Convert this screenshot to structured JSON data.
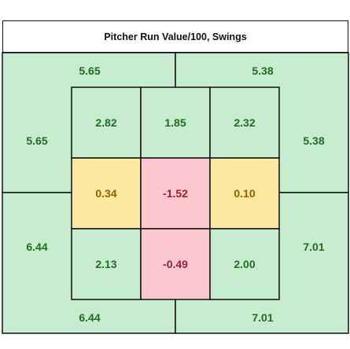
{
  "chart_data": {
    "type": "heatmap",
    "title": "Pitcher Run Value/100, Swings",
    "zone_grid": [
      [
        2.82,
        1.85,
        2.32
      ],
      [
        0.34,
        -1.52,
        0.1
      ],
      [
        2.13,
        -0.49,
        2.0
      ]
    ],
    "outer_labels": {
      "top_left": 5.65,
      "top_right": 5.38,
      "left_upper": 5.65,
      "right_upper": 5.38,
      "left_lower": 6.44,
      "right_lower": 7.01,
      "bottom_left": 6.44,
      "bottom_right": 7.01
    },
    "outer_quadrants": {
      "top_left": 5.65,
      "top_right": 5.38,
      "bottom_left": 6.44,
      "bottom_right": 7.01
    },
    "colors": {
      "green_fill": "#c8ecd0",
      "yellow_fill": "#fde99f",
      "pink_fill": "#fcc8d0",
      "green_text": "#1f6e1f",
      "yellow_text": "#9a5a00",
      "pink_text": "#9c1f2e",
      "grid_line": "#111111"
    }
  }
}
